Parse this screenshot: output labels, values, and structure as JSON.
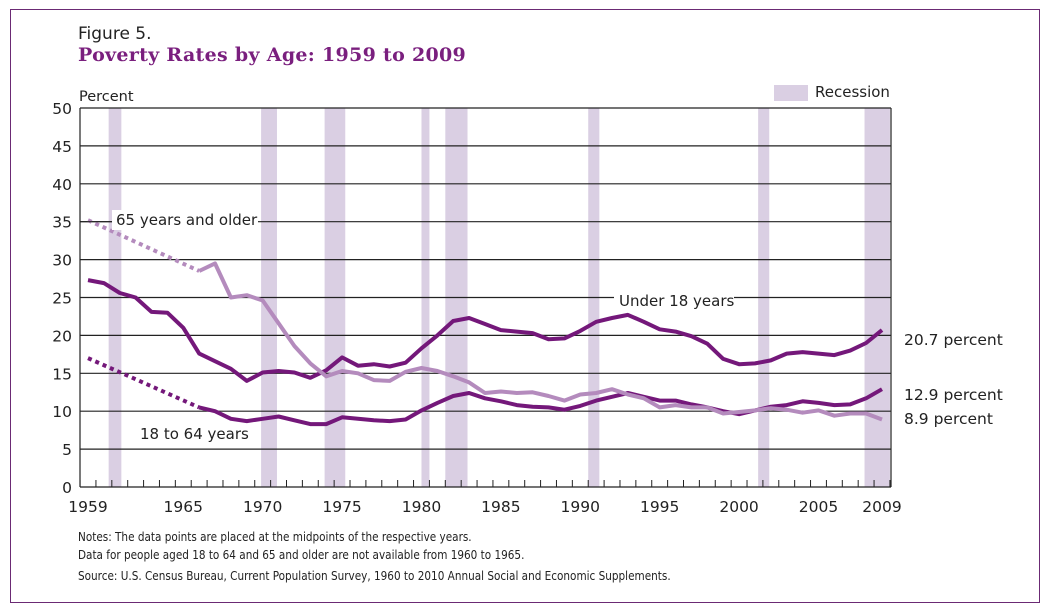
{
  "figure_label": "Figure 5.",
  "figure_title": "Poverty Rates by Age: 1959 to 2009",
  "notes": [
    "Notes:  The data points are placed at the midpoints of the respective years.",
    "Data for people aged 18 to 64 and 65 and older are not available from 1960 to 1965."
  ],
  "source": "Source:  U.S. Census Bureau, Current Population Survey, 1960 to 2010 Annual Social and Economic Supplements.",
  "colors": {
    "under18": "#74187a",
    "age18to64": "#74187a",
    "age65plus": "#b48bbd",
    "recession": "#dacfe3",
    "frame": "#6b2a74",
    "title": "#7a1f7e"
  },
  "chart_data": {
    "type": "line",
    "title": "Poverty Rates by Age: 1959 to 2009",
    "ylabel": "Percent",
    "xlabel": "",
    "ylim": [
      0,
      50
    ],
    "xlim": [
      1959,
      2009
    ],
    "yticks": [
      0,
      5,
      10,
      15,
      20,
      25,
      30,
      35,
      40,
      45,
      50
    ],
    "xtick_labels": [
      "1959",
      "1965",
      "1970",
      "1975",
      "1980",
      "1985",
      "1990",
      "1995",
      "2000",
      "2005",
      "2009"
    ],
    "grid": true,
    "legend": {
      "label": "Recession",
      "placement": "top-right"
    },
    "recessions": [
      [
        1960.3,
        1961.1
      ],
      [
        1969.9,
        1970.9
      ],
      [
        1973.9,
        1975.2
      ],
      [
        1980.0,
        1980.5
      ],
      [
        1981.5,
        1982.9
      ],
      [
        1990.5,
        1991.2
      ],
      [
        2001.2,
        2001.9
      ],
      [
        2007.9,
        2009.5
      ]
    ],
    "series": [
      {
        "name": "Under 18 years",
        "label": "Under 18 years",
        "end_label": "20.7 percent",
        "x": [
          1959,
          1960,
          1961,
          1962,
          1963,
          1964,
          1965,
          1966,
          1967,
          1968,
          1969,
          1970,
          1971,
          1972,
          1973,
          1974,
          1975,
          1976,
          1977,
          1978,
          1979,
          1980,
          1981,
          1982,
          1983,
          1984,
          1985,
          1986,
          1987,
          1988,
          1989,
          1990,
          1991,
          1992,
          1993,
          1994,
          1995,
          1996,
          1997,
          1998,
          1999,
          2000,
          2001,
          2002,
          2003,
          2004,
          2005,
          2006,
          2007,
          2008,
          2009
        ],
        "values": [
          27.3,
          26.9,
          25.6,
          25.0,
          23.1,
          23.0,
          21.0,
          17.6,
          16.6,
          15.6,
          14.0,
          15.1,
          15.3,
          15.1,
          14.4,
          15.4,
          17.1,
          16.0,
          16.2,
          15.9,
          16.4,
          18.3,
          20.0,
          21.9,
          22.3,
          21.5,
          20.7,
          20.5,
          20.3,
          19.5,
          19.6,
          20.6,
          21.8,
          22.3,
          22.7,
          21.8,
          20.8,
          20.5,
          19.9,
          18.9,
          16.9,
          16.2,
          16.3,
          16.7,
          17.6,
          17.8,
          17.6,
          17.4,
          18.0,
          19.0,
          20.7
        ],
        "dotted_segments": []
      },
      {
        "name": "18 to 64 years",
        "label": "18 to 64 years",
        "end_label": "12.9 percent",
        "x": [
          1959,
          1966,
          1967,
          1968,
          1969,
          1970,
          1971,
          1972,
          1973,
          1974,
          1975,
          1976,
          1977,
          1978,
          1979,
          1980,
          1981,
          1982,
          1983,
          1984,
          1985,
          1986,
          1987,
          1988,
          1989,
          1990,
          1991,
          1992,
          1993,
          1994,
          1995,
          1996,
          1997,
          1998,
          1999,
          2000,
          2001,
          2002,
          2003,
          2004,
          2005,
          2006,
          2007,
          2008,
          2009
        ],
        "values": [
          17.0,
          10.5,
          10.0,
          9.0,
          8.7,
          9.0,
          9.3,
          8.8,
          8.3,
          8.3,
          9.2,
          9.0,
          8.8,
          8.7,
          8.9,
          10.1,
          11.1,
          12.0,
          12.4,
          11.7,
          11.3,
          10.8,
          10.6,
          10.5,
          10.2,
          10.7,
          11.4,
          11.9,
          12.4,
          11.9,
          11.4,
          11.4,
          10.9,
          10.5,
          10.0,
          9.6,
          10.1,
          10.6,
          10.8,
          11.3,
          11.1,
          10.8,
          10.9,
          11.7,
          12.9
        ],
        "dotted_segments": [
          [
            1959,
            1966
          ]
        ]
      },
      {
        "name": "65 years and older",
        "label": "65 years and older",
        "end_label": "8.9 percent",
        "x": [
          1959,
          1966,
          1967,
          1968,
          1969,
          1970,
          1971,
          1972,
          1973,
          1974,
          1975,
          1976,
          1977,
          1978,
          1979,
          1980,
          1981,
          1982,
          1983,
          1984,
          1985,
          1986,
          1987,
          1988,
          1989,
          1990,
          1991,
          1992,
          1993,
          1994,
          1995,
          1996,
          1997,
          1998,
          1999,
          2000,
          2001,
          2002,
          2003,
          2004,
          2005,
          2006,
          2007,
          2008,
          2009
        ],
        "values": [
          35.2,
          28.5,
          29.5,
          25.0,
          25.3,
          24.6,
          21.6,
          18.6,
          16.3,
          14.6,
          15.3,
          15.0,
          14.1,
          14.0,
          15.2,
          15.7,
          15.3,
          14.6,
          13.8,
          12.4,
          12.6,
          12.4,
          12.5,
          12.0,
          11.4,
          12.2,
          12.4,
          12.9,
          12.2,
          11.7,
          10.5,
          10.8,
          10.5,
          10.5,
          9.7,
          9.9,
          10.1,
          10.4,
          10.2,
          9.8,
          10.1,
          9.4,
          9.7,
          9.7,
          8.9
        ],
        "dotted_segments": [
          [
            1959,
            1966
          ]
        ]
      }
    ]
  }
}
